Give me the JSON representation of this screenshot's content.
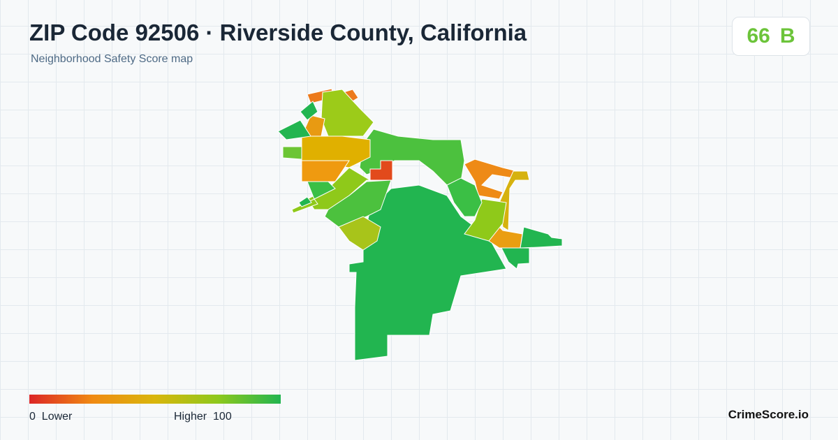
{
  "header": {
    "title": "ZIP Code 92506 · Riverside County, California",
    "subtitle": "Neighborhood Safety Score map"
  },
  "score": {
    "value": 66,
    "grade": "B"
  },
  "legend": {
    "min": 0,
    "min_label": "Lower",
    "max_label": "Higher",
    "max": 100
  },
  "footer": {
    "brand": "CrimeScore.io"
  }
}
